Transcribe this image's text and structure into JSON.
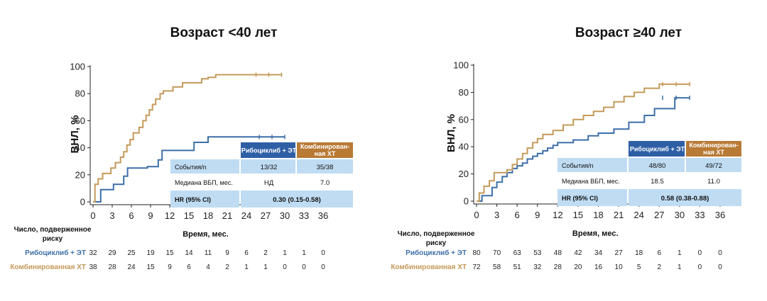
{
  "chart_data": [
    {
      "type": "line",
      "title": "Возраст <40 лет",
      "ylabel": "ВНЛ, %",
      "xlabel": "Время, мес.",
      "ylim": [
        0,
        100
      ],
      "xlim": [
        0,
        36
      ],
      "yticks": [
        0,
        20,
        40,
        60,
        80,
        100
      ],
      "xticks": [
        0,
        3,
        6,
        9,
        12,
        15,
        18,
        21,
        24,
        27,
        30,
        33,
        36
      ],
      "series": [
        {
          "name": "Рибоциклиб + ЭТ",
          "color": "#3d6fa8",
          "x": [
            0,
            1.2,
            1.2,
            3.2,
            3.2,
            4.8,
            4.8,
            5.4,
            5.4,
            8.5,
            8.5,
            10.2,
            10.2,
            10.8,
            10.8,
            12.0,
            12.0,
            15.8,
            15.8,
            18.0,
            18.0,
            21.5,
            21.5,
            30.0
          ],
          "y": [
            0,
            0,
            9,
            9,
            13,
            13,
            19,
            19,
            25,
            25,
            26,
            26,
            31,
            31,
            38,
            38,
            38,
            38,
            44,
            44,
            48,
            48,
            48,
            48
          ]
        },
        {
          "name": "Комбинированная ХТ",
          "color": "#c49a5a",
          "x": [
            0,
            0.3,
            0.3,
            0.8,
            0.8,
            1.5,
            1.5,
            2.8,
            2.8,
            3.5,
            3.5,
            4.3,
            4.3,
            4.8,
            4.8,
            5.3,
            5.3,
            5.8,
            5.8,
            6.3,
            6.3,
            7.2,
            7.2,
            7.8,
            7.8,
            8.3,
            8.3,
            8.8,
            8.8,
            9.3,
            9.3,
            9.8,
            9.8,
            10.5,
            10.5,
            11.0,
            11.0,
            11.6,
            11.6,
            12.5,
            12.5,
            14.0,
            14.0,
            15.3,
            15.3,
            17.0,
            17.0,
            18.0,
            18.0,
            19.2,
            19.2,
            29.5
          ],
          "y": [
            0,
            0,
            13,
            13,
            17,
            17,
            21,
            21,
            25,
            25,
            29,
            29,
            33,
            33,
            37,
            37,
            42,
            42,
            46,
            46,
            51,
            51,
            55,
            55,
            60,
            60,
            64,
            64,
            68,
            68,
            72,
            72,
            76,
            76,
            80,
            80,
            82,
            82,
            82,
            82,
            85,
            85,
            88,
            88,
            88,
            88,
            91,
            91,
            92,
            92,
            94,
            94
          ]
        }
      ],
      "table": {
        "columns": [
          "Рибоциклиб + ЭТ",
          "Комбинирован-ная ХТ"
        ],
        "rows": [
          {
            "label": "События/n",
            "a": "13/32",
            "b": "35/38"
          },
          {
            "label": "Медиана ВБП, мес.",
            "a": "НД",
            "b": "7.0"
          }
        ],
        "hr_label": "HR (95% CI)",
        "hr_value": "0.30 (0.15-0.58)"
      },
      "risk": {
        "header": "Число, подверженное риску",
        "rows": [
          {
            "name": "Рибоциклиб + ЭТ",
            "values": [
              32,
              29,
              25,
              19,
              15,
              14,
              11,
              9,
              6,
              2,
              1,
              1,
              0
            ]
          },
          {
            "name": "Комбинированная ХТ",
            "values": [
              38,
              28,
              24,
              15,
              9,
              6,
              4,
              2,
              1,
              1,
              0,
              0,
              0
            ]
          }
        ]
      }
    },
    {
      "type": "line",
      "title": "Возраст ≥40 лет",
      "ylabel": "ВНЛ, %",
      "xlabel": "Время, мес.",
      "ylim": [
        0,
        100
      ],
      "xlim": [
        0,
        36
      ],
      "yticks": [
        0,
        20,
        40,
        60,
        80,
        100
      ],
      "xticks": [
        0,
        3,
        6,
        9,
        12,
        15,
        18,
        21,
        24,
        27,
        30,
        33,
        36
      ],
      "series": [
        {
          "name": "Рибоциклиб + ЭТ",
          "color": "#3d6fa8",
          "x": [
            0,
            0.8,
            0.8,
            2.3,
            2.3,
            3.0,
            3.0,
            3.8,
            3.8,
            4.5,
            4.5,
            5.3,
            5.3,
            6.0,
            6.0,
            6.8,
            6.8,
            7.5,
            7.5,
            8.3,
            8.3,
            9.0,
            9.0,
            9.8,
            9.8,
            10.5,
            10.5,
            11.3,
            11.3,
            12.0,
            12.0,
            14.3,
            14.3,
            16.5,
            16.5,
            18.0,
            18.0,
            20.3,
            20.3,
            22.5,
            22.5,
            24.8,
            24.8,
            26.3,
            26.3,
            29.3,
            29.3,
            31.5
          ],
          "y": [
            0,
            0,
            4,
            4,
            10,
            10,
            14,
            14,
            18,
            18,
            21,
            21,
            24,
            24,
            26,
            26,
            28,
            28,
            31,
            31,
            33,
            33,
            35,
            35,
            37,
            37,
            39,
            39,
            41,
            41,
            43,
            43,
            45,
            45,
            48,
            48,
            50,
            50,
            53,
            53,
            58,
            58,
            63,
            63,
            68,
            68,
            76,
            76
          ]
        },
        {
          "name": "Комбинированная ХТ",
          "color": "#c49a5a",
          "x": [
            0,
            0.4,
            0.4,
            1.1,
            1.1,
            1.9,
            1.9,
            2.6,
            2.6,
            4.5,
            4.5,
            5.3,
            5.3,
            6.0,
            6.0,
            6.8,
            6.8,
            7.5,
            7.5,
            8.3,
            8.3,
            9.0,
            9.0,
            9.8,
            9.8,
            11.3,
            11.3,
            12.8,
            12.8,
            14.3,
            14.3,
            15.8,
            15.8,
            17.3,
            17.3,
            18.8,
            18.8,
            20.3,
            20.3,
            21.8,
            21.8,
            23.3,
            23.3,
            24.8,
            24.8,
            27.0,
            27.0,
            29.3,
            29.3,
            31.5
          ],
          "y": [
            0,
            0,
            6,
            6,
            11,
            11,
            15,
            15,
            21,
            21,
            23,
            23,
            27,
            27,
            31,
            31,
            35,
            35,
            39,
            39,
            43,
            43,
            46,
            46,
            49,
            49,
            52,
            52,
            56,
            56,
            60,
            60,
            63,
            63,
            66,
            66,
            69,
            69,
            73,
            73,
            77,
            77,
            80,
            80,
            83,
            83,
            86,
            86,
            86,
            86
          ]
        }
      ],
      "table": {
        "columns": [
          "Рибоциклиб + ЭТ",
          "Комбинирован-ная ХТ"
        ],
        "rows": [
          {
            "label": "События/n",
            "a": "48/80",
            "b": "49/72"
          },
          {
            "label": "Медиана ВБП, мес.",
            "a": "18.5",
            "b": "11.0"
          }
        ],
        "hr_label": "HR (95% CI)",
        "hr_value": "0.58 (0.38-0.88)"
      },
      "risk": {
        "header": "Число, подверженное риску",
        "rows": [
          {
            "name": "Рибоциклиб + ЭТ",
            "values": [
              80,
              70,
              63,
              53,
              48,
              42,
              34,
              27,
              18,
              6,
              1,
              0,
              0
            ]
          },
          {
            "name": "Комбинированная ХТ",
            "values": [
              72,
              58,
              51,
              32,
              28,
              20,
              16,
              10,
              5,
              2,
              1,
              0,
              0
            ]
          }
        ]
      }
    }
  ]
}
